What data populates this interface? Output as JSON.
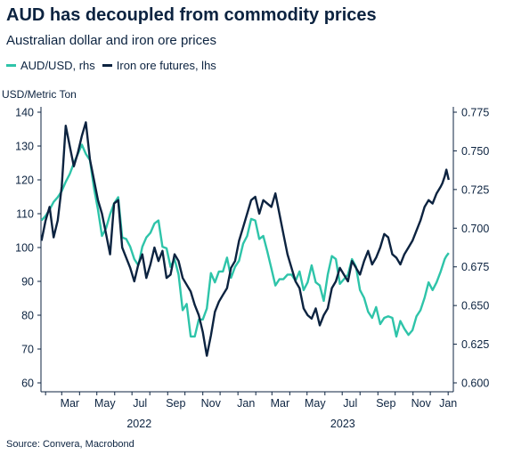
{
  "title": "AUD has decoupled from commodity prices",
  "subtitle": "Australian dollar and iron ore prices",
  "source": "Source: Convera, Macrobond",
  "legend": [
    {
      "label": "AUD/USD, rhs",
      "color": "#2ec4a9"
    },
    {
      "label": "Iron ore futures, lhs",
      "color": "#0c2340"
    }
  ],
  "chart_data": {
    "type": "line",
    "ylabel_left": "USD/Metric Ton",
    "ylim_left": [
      60,
      140
    ],
    "yticks_left": [
      "60",
      "70",
      "80",
      "90",
      "100",
      "110",
      "120",
      "130",
      "140"
    ],
    "ylim_right": [
      0.6,
      0.775
    ],
    "yticks_right": [
      "0.600",
      "0.625",
      "0.650",
      "0.675",
      "0.700",
      "0.725",
      "0.750",
      "0.775"
    ],
    "xlim": [
      "2022-01-24",
      "2024-01-10"
    ],
    "month_ticks": [
      "Mar",
      "May",
      "Jul",
      "Sep",
      "Nov",
      "Jan",
      "Mar",
      "May",
      "Jul",
      "Sep",
      "Nov",
      "Jan"
    ],
    "year_labels": [
      "2022",
      "2023"
    ],
    "grid": false,
    "series": [
      {
        "name": "AUD/USD, rhs",
        "axis": "right",
        "color": "#2ec4a9",
        "points": [
          [
            "2022-01-25",
            0.705
          ],
          [
            "2022-02-01",
            0.708
          ],
          [
            "2022-02-08",
            0.712
          ],
          [
            "2022-02-15",
            0.717
          ],
          [
            "2022-02-22",
            0.72
          ],
          [
            "2022-03-01",
            0.724
          ],
          [
            "2022-03-08",
            0.73
          ],
          [
            "2022-03-15",
            0.735
          ],
          [
            "2022-03-22",
            0.742
          ],
          [
            "2022-03-29",
            0.748
          ],
          [
            "2022-04-05",
            0.754
          ],
          [
            "2022-04-12",
            0.748
          ],
          [
            "2022-04-19",
            0.744
          ],
          [
            "2022-04-26",
            0.726
          ],
          [
            "2022-05-03",
            0.712
          ],
          [
            "2022-05-10",
            0.695
          ],
          [
            "2022-05-17",
            0.7
          ],
          [
            "2022-05-24",
            0.709
          ],
          [
            "2022-05-31",
            0.716
          ],
          [
            "2022-06-07",
            0.72
          ],
          [
            "2022-06-14",
            0.694
          ],
          [
            "2022-06-21",
            0.693
          ],
          [
            "2022-06-28",
            0.688
          ],
          [
            "2022-07-05",
            0.68
          ],
          [
            "2022-07-12",
            0.676
          ],
          [
            "2022-07-19",
            0.688
          ],
          [
            "2022-07-26",
            0.694
          ],
          [
            "2022-08-02",
            0.697
          ],
          [
            "2022-08-09",
            0.703
          ],
          [
            "2022-08-16",
            0.705
          ],
          [
            "2022-08-23",
            0.688
          ],
          [
            "2022-08-30",
            0.687
          ],
          [
            "2022-09-06",
            0.675
          ],
          [
            "2022-09-13",
            0.68
          ],
          [
            "2022-09-20",
            0.67
          ],
          [
            "2022-09-27",
            0.647
          ],
          [
            "2022-10-04",
            0.651
          ],
          [
            "2022-10-11",
            0.63
          ],
          [
            "2022-10-18",
            0.63
          ],
          [
            "2022-10-25",
            0.641
          ],
          [
            "2022-11-01",
            0.641
          ],
          [
            "2022-11-08",
            0.648
          ],
          [
            "2022-11-15",
            0.671
          ],
          [
            "2022-11-22",
            0.665
          ],
          [
            "2022-11-29",
            0.672
          ],
          [
            "2022-12-06",
            0.672
          ],
          [
            "2022-12-13",
            0.681
          ],
          [
            "2022-12-20",
            0.668
          ],
          [
            "2022-12-27",
            0.675
          ],
          [
            "2023-01-03",
            0.679
          ],
          [
            "2023-01-10",
            0.69
          ],
          [
            "2023-01-17",
            0.695
          ],
          [
            "2023-01-24",
            0.706
          ],
          [
            "2023-01-31",
            0.705
          ],
          [
            "2023-02-07",
            0.693
          ],
          [
            "2023-02-14",
            0.695
          ],
          [
            "2023-02-21",
            0.685
          ],
          [
            "2023-02-28",
            0.674
          ],
          [
            "2023-03-07",
            0.663
          ],
          [
            "2023-03-14",
            0.667
          ],
          [
            "2023-03-21",
            0.667
          ],
          [
            "2023-03-28",
            0.67
          ],
          [
            "2023-04-04",
            0.67
          ],
          [
            "2023-04-11",
            0.666
          ],
          [
            "2023-04-18",
            0.672
          ],
          [
            "2023-04-25",
            0.66
          ],
          [
            "2023-05-02",
            0.665
          ],
          [
            "2023-05-09",
            0.676
          ],
          [
            "2023-05-16",
            0.665
          ],
          [
            "2023-05-23",
            0.663
          ],
          [
            "2023-05-30",
            0.653
          ],
          [
            "2023-06-06",
            0.67
          ],
          [
            "2023-06-13",
            0.682
          ],
          [
            "2023-06-20",
            0.68
          ],
          [
            "2023-06-27",
            0.664
          ],
          [
            "2023-07-04",
            0.667
          ],
          [
            "2023-07-11",
            0.67
          ],
          [
            "2023-07-18",
            0.68
          ],
          [
            "2023-07-25",
            0.675
          ],
          [
            "2023-08-01",
            0.66
          ],
          [
            "2023-08-08",
            0.655
          ],
          [
            "2023-08-15",
            0.646
          ],
          [
            "2023-08-22",
            0.642
          ],
          [
            "2023-08-29",
            0.649
          ],
          [
            "2023-09-05",
            0.638
          ],
          [
            "2023-09-12",
            0.642
          ],
          [
            "2023-09-19",
            0.643
          ],
          [
            "2023-09-26",
            0.642
          ],
          [
            "2023-10-03",
            0.63
          ],
          [
            "2023-10-10",
            0.64
          ],
          [
            "2023-10-17",
            0.635
          ],
          [
            "2023-10-24",
            0.631
          ],
          [
            "2023-10-31",
            0.634
          ],
          [
            "2023-11-07",
            0.643
          ],
          [
            "2023-11-14",
            0.647
          ],
          [
            "2023-11-21",
            0.655
          ],
          [
            "2023-11-28",
            0.665
          ],
          [
            "2023-12-05",
            0.66
          ],
          [
            "2023-12-12",
            0.665
          ],
          [
            "2023-12-19",
            0.672
          ],
          [
            "2023-12-26",
            0.68
          ],
          [
            "2023-12-29",
            0.682
          ],
          [
            "2024-01-02",
            0.684
          ]
        ]
      },
      {
        "name": "Iron ore futures, lhs",
        "axis": "left",
        "color": "#0c2340",
        "points": [
          [
            "2022-01-25",
            102
          ],
          [
            "2022-02-01",
            108
          ],
          [
            "2022-02-08",
            112
          ],
          [
            "2022-02-15",
            103
          ],
          [
            "2022-02-22",
            108
          ],
          [
            "2022-03-01",
            118
          ],
          [
            "2022-03-08",
            136
          ],
          [
            "2022-03-15",
            130
          ],
          [
            "2022-03-22",
            124
          ],
          [
            "2022-03-29",
            128
          ],
          [
            "2022-04-05",
            133
          ],
          [
            "2022-04-12",
            137
          ],
          [
            "2022-04-19",
            126
          ],
          [
            "2022-04-26",
            120
          ],
          [
            "2022-05-03",
            114
          ],
          [
            "2022-05-10",
            110
          ],
          [
            "2022-05-17",
            104
          ],
          [
            "2022-05-24",
            98
          ],
          [
            "2022-05-31",
            113
          ],
          [
            "2022-06-07",
            114
          ],
          [
            "2022-06-14",
            100
          ],
          [
            "2022-06-21",
            97
          ],
          [
            "2022-06-28",
            94
          ],
          [
            "2022-07-05",
            90
          ],
          [
            "2022-07-12",
            95
          ],
          [
            "2022-07-19",
            98
          ],
          [
            "2022-07-26",
            91
          ],
          [
            "2022-08-02",
            95
          ],
          [
            "2022-08-09",
            100
          ],
          [
            "2022-08-16",
            96
          ],
          [
            "2022-08-23",
            99
          ],
          [
            "2022-08-30",
            91
          ],
          [
            "2022-09-06",
            92
          ],
          [
            "2022-09-13",
            98
          ],
          [
            "2022-09-20",
            96
          ],
          [
            "2022-09-27",
            91
          ],
          [
            "2022-10-04",
            89
          ],
          [
            "2022-10-11",
            87
          ],
          [
            "2022-10-18",
            83
          ],
          [
            "2022-10-25",
            80
          ],
          [
            "2022-11-01",
            75
          ],
          [
            "2022-11-08",
            68
          ],
          [
            "2022-11-15",
            74
          ],
          [
            "2022-11-22",
            81
          ],
          [
            "2022-11-29",
            84
          ],
          [
            "2022-12-06",
            86
          ],
          [
            "2022-12-13",
            88
          ],
          [
            "2022-12-20",
            94
          ],
          [
            "2022-12-27",
            96
          ],
          [
            "2023-01-03",
            102
          ],
          [
            "2023-01-10",
            106
          ],
          [
            "2023-01-17",
            110
          ],
          [
            "2023-01-24",
            114
          ],
          [
            "2023-01-31",
            115
          ],
          [
            "2023-02-07",
            110
          ],
          [
            "2023-02-14",
            114
          ],
          [
            "2023-02-21",
            113
          ],
          [
            "2023-02-28",
            112
          ],
          [
            "2023-03-07",
            116
          ],
          [
            "2023-03-14",
            110
          ],
          [
            "2023-03-21",
            104
          ],
          [
            "2023-03-28",
            98
          ],
          [
            "2023-04-04",
            94
          ],
          [
            "2023-04-11",
            90
          ],
          [
            "2023-04-18",
            88
          ],
          [
            "2023-04-25",
            82
          ],
          [
            "2023-05-02",
            80
          ],
          [
            "2023-05-09",
            79
          ],
          [
            "2023-05-16",
            82
          ],
          [
            "2023-05-23",
            77
          ],
          [
            "2023-05-30",
            80
          ],
          [
            "2023-06-06",
            82
          ],
          [
            "2023-06-13",
            88
          ],
          [
            "2023-06-20",
            90
          ],
          [
            "2023-06-27",
            94
          ],
          [
            "2023-07-04",
            92
          ],
          [
            "2023-07-11",
            90
          ],
          [
            "2023-07-18",
            96
          ],
          [
            "2023-07-25",
            94
          ],
          [
            "2023-08-01",
            92
          ],
          [
            "2023-08-08",
            96
          ],
          [
            "2023-08-15",
            99
          ],
          [
            "2023-08-22",
            95
          ],
          [
            "2023-08-29",
            97
          ],
          [
            "2023-09-05",
            100
          ],
          [
            "2023-09-12",
            104
          ],
          [
            "2023-09-19",
            103
          ],
          [
            "2023-09-26",
            98
          ],
          [
            "2023-10-03",
            97
          ],
          [
            "2023-10-10",
            95
          ],
          [
            "2023-10-17",
            98
          ],
          [
            "2023-10-24",
            100
          ],
          [
            "2023-10-31",
            102
          ],
          [
            "2023-11-07",
            105
          ],
          [
            "2023-11-14",
            108
          ],
          [
            "2023-11-21",
            112
          ],
          [
            "2023-11-28",
            114
          ],
          [
            "2023-12-05",
            113
          ],
          [
            "2023-12-12",
            116
          ],
          [
            "2023-12-19",
            118
          ],
          [
            "2023-12-22",
            119
          ],
          [
            "2023-12-26",
            121
          ],
          [
            "2023-12-29",
            123
          ],
          [
            "2024-01-02",
            120
          ]
        ]
      }
    ]
  }
}
